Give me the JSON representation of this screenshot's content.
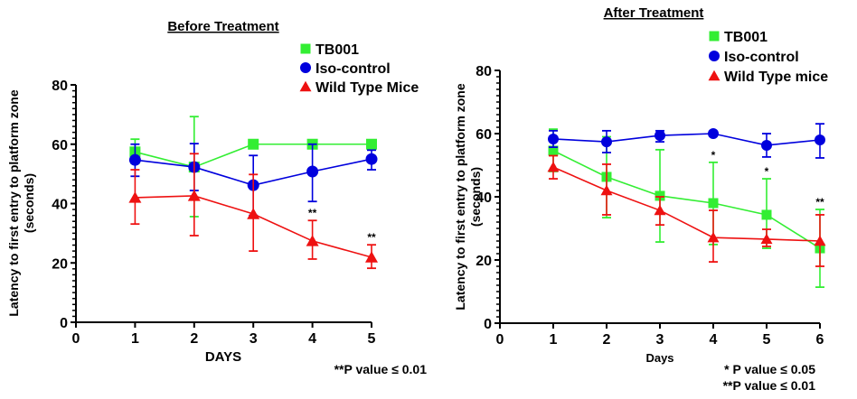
{
  "chart_data": [
    {
      "type": "line",
      "title": "Before Treatment",
      "xlabel": "DAYS",
      "ylabel": "Latency to first entry to platform zone (seconds)",
      "xlim": [
        0,
        5
      ],
      "ylim": [
        0,
        80
      ],
      "xticks": [
        "0",
        "1",
        "2",
        "3",
        "4",
        "5"
      ],
      "yticks": [
        "0",
        "20",
        "40",
        "60",
        "80"
      ],
      "grid": false,
      "legend_position": "top-right",
      "x": [
        1,
        2,
        3,
        4,
        5
      ],
      "series": [
        {
          "name": "TB001",
          "color": "#33ee33",
          "marker": "square",
          "values": [
            57.4,
            52.3,
            60,
            60,
            60
          ],
          "err_upper": [
            61.7,
            69.3,
            60,
            60,
            60
          ],
          "err_lower": [
            53.5,
            35.6,
            60,
            60,
            60
          ]
        },
        {
          "name": "Iso-control",
          "color": "#0000dd",
          "marker": "circle",
          "values": [
            54.7,
            52.3,
            46.2,
            50.8,
            55
          ],
          "err_upper": [
            60,
            60.2,
            56.2,
            60,
            58
          ],
          "err_lower": [
            49.2,
            44.4,
            36,
            40.7,
            51.4
          ]
        },
        {
          "name": "Wild Type Mice",
          "color": "#ee1111",
          "marker": "triangle",
          "values": [
            42,
            42.6,
            36.5,
            27.4,
            21.9
          ],
          "err_upper": [
            51.4,
            56.8,
            49.8,
            34.3,
            26.1
          ],
          "err_lower": [
            33.1,
            29.2,
            24,
            21.3,
            18.2
          ]
        }
      ],
      "annotations": [
        {
          "x": 4,
          "y": 34.3,
          "text": "**"
        },
        {
          "x": 5,
          "y": 26.1,
          "text": "**"
        }
      ],
      "notes": [
        "**P value ≤ 0.01"
      ]
    },
    {
      "type": "line",
      "title": "After Treatment",
      "xlabel": "Days",
      "ylabel": "Latency to first entry to platform zone (seconds)",
      "xlim": [
        0,
        6
      ],
      "ylim": [
        0,
        80
      ],
      "xticks": [
        "0",
        "1",
        "2",
        "3",
        "4",
        "5",
        "6"
      ],
      "yticks": [
        "0",
        "20",
        "40",
        "60",
        "80"
      ],
      "grid": false,
      "legend_position": "top-right",
      "x": [
        1,
        2,
        3,
        4,
        5,
        6
      ],
      "series": [
        {
          "name": "TB001",
          "color": "#33ee33",
          "marker": "square",
          "values": [
            54.6,
            46.3,
            40.3,
            38,
            34.3,
            23.7
          ],
          "err_upper": [
            61.4,
            59,
            54.9,
            50.9,
            45.7,
            36
          ],
          "err_lower": [
            48,
            33.4,
            25.7,
            24.9,
            23.7,
            11.4
          ]
        },
        {
          "name": "Iso-control",
          "color": "#0000dd",
          "marker": "circle",
          "values": [
            58.3,
            57.4,
            59.4,
            60,
            56.3,
            58
          ],
          "err_upper": [
            60.9,
            60.9,
            60.9,
            60,
            60,
            63.1
          ],
          "err_lower": [
            55.7,
            54,
            57.4,
            60,
            52.6,
            52.3
          ]
        },
        {
          "name": "Wild Type mice",
          "color": "#ee1111",
          "marker": "triangle",
          "values": [
            49.4,
            42,
            35.7,
            27.1,
            26.6,
            26
          ],
          "err_upper": [
            53,
            50.3,
            40,
            35.7,
            29.7,
            34.3
          ],
          "err_lower": [
            45.7,
            34.3,
            31.1,
            19.4,
            24.3,
            18
          ]
        }
      ],
      "annotations": [
        {
          "x": 4,
          "y": 50.9,
          "text": "*"
        },
        {
          "x": 5,
          "y": 45.7,
          "text": "*"
        },
        {
          "x": 6,
          "y": 36,
          "text": "**"
        }
      ],
      "notes": [
        "* P value ≤ 0.05",
        "**P value ≤ 0.01"
      ]
    }
  ]
}
